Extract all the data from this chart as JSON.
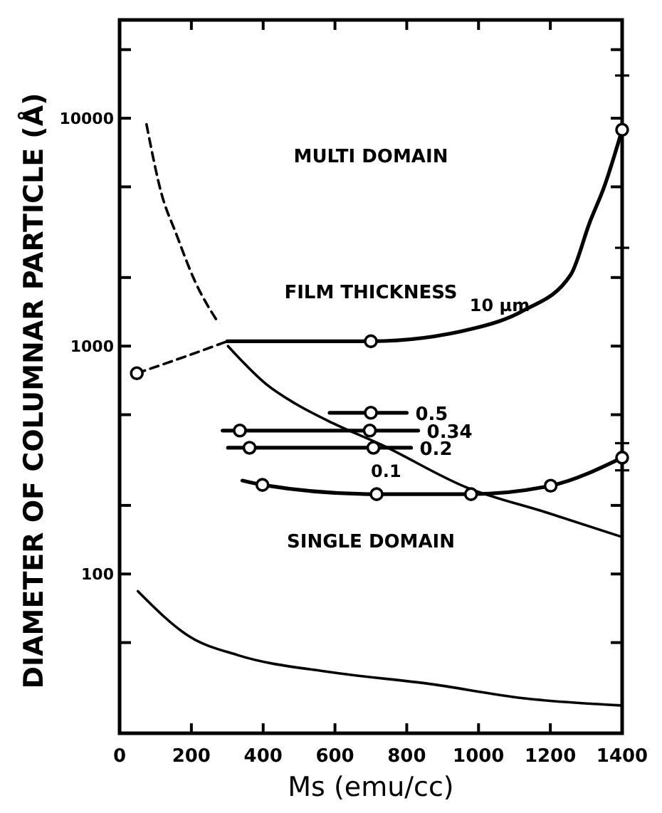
{
  "chart_data": {
    "type": "line",
    "xlabel": "Ms (emu/cc)",
    "ylabel": "DIAMETER OF COLUMNAR PARTICLE (Å)",
    "log": "y",
    "grid": false,
    "xlim": [
      0,
      1400
    ],
    "xticks": [
      0,
      200,
      400,
      600,
      800,
      1000,
      1200,
      1400
    ],
    "ylim": [
      20,
      27000
    ],
    "yticks": [
      {
        "value": 20000,
        "label": null
      },
      10000,
      {
        "value": 5000,
        "label": null
      },
      {
        "value": 2000,
        "label": null
      },
      1000,
      {
        "value": 500,
        "label": null
      },
      {
        "value": 200,
        "label": null
      },
      100,
      {
        "value": 50,
        "label": null
      }
    ],
    "annotations": [
      "MULTI DOMAIN",
      "FILM THICKNESS",
      "SINGLE DOMAIN"
    ],
    "series": [
      {
        "name": "10 μm",
        "color": "#000000",
        "line_style": "solid",
        "marker": "none",
        "x": [
          300,
          700,
          991,
          1124,
          1257,
          1310,
          1350,
          1400
        ],
        "values": [
          1050,
          1050,
          1200,
          1430,
          2060,
          3500,
          5000,
          8900
        ]
      },
      {
        "color": "#000000",
        "line_style": "dashed",
        "marker": "none",
        "x": [
          48,
          200,
          300
        ],
        "values": [
          760,
          920,
          1050
        ]
      },
      {
        "name": "0.5",
        "color": "#000000",
        "line_style": "solid",
        "marker": "none",
        "x": [
          585,
          700,
          800
        ],
        "values": [
          510,
          510,
          510
        ]
      },
      {
        "name": "0.34",
        "color": "#000000",
        "line_style": "solid",
        "marker": "none",
        "x": [
          287,
          335,
          697,
          832
        ],
        "values": [
          426,
          426,
          426,
          426
        ]
      },
      {
        "name": "0.2",
        "color": "#000000",
        "line_style": "solid",
        "marker": "none",
        "x": [
          302,
          362,
          707,
          812
        ],
        "values": [
          358,
          358,
          358,
          358
        ]
      },
      {
        "name": "0.1",
        "color": "#000000",
        "line_style": "solid",
        "marker": "none",
        "x": [
          342,
          398,
          716,
          979,
          1201,
          1400
        ],
        "values": [
          257,
          246,
          224,
          224,
          244,
          324
        ]
      },
      {
        "color": "#000000",
        "line_style": "solid",
        "marker": "none",
        "x": [
          302,
          409,
          489,
          593,
          728,
          966,
          1190,
          1396
        ],
        "values": [
          1000,
          680,
          560,
          460,
          370,
          240,
          186,
          146
        ]
      },
      {
        "color": "#000000",
        "line_style": "dashed",
        "marker": "none",
        "x": [
          75,
          117,
          157,
          209,
          276
        ],
        "values": [
          9400,
          4650,
          3130,
          1940,
          1260
        ]
      },
      {
        "color": "#000000",
        "line_style": "solid",
        "marker": "none",
        "x": [
          51,
          196,
          330,
          593,
          860,
          1124,
          1396
        ],
        "values": [
          84,
          53,
          44,
          37,
          33,
          28.5,
          26.5
        ]
      },
      {
        "type": "scatter",
        "color": "#000000",
        "marker": "circle",
        "x": [
          700,
          1400,
          48,
          700,
          335,
          697,
          362,
          707,
          398,
          716,
          979,
          1201,
          1400
        ],
        "values": [
          1050,
          8900,
          760,
          510,
          426,
          426,
          358,
          358,
          246,
          224,
          224,
          244,
          324
        ],
        "errors": [
          null,
          [
            2700,
            15400
          ],
          null,
          null,
          null,
          null,
          null,
          null,
          null,
          null,
          null,
          null,
          [
            285,
            375
          ]
        ]
      }
    ]
  }
}
